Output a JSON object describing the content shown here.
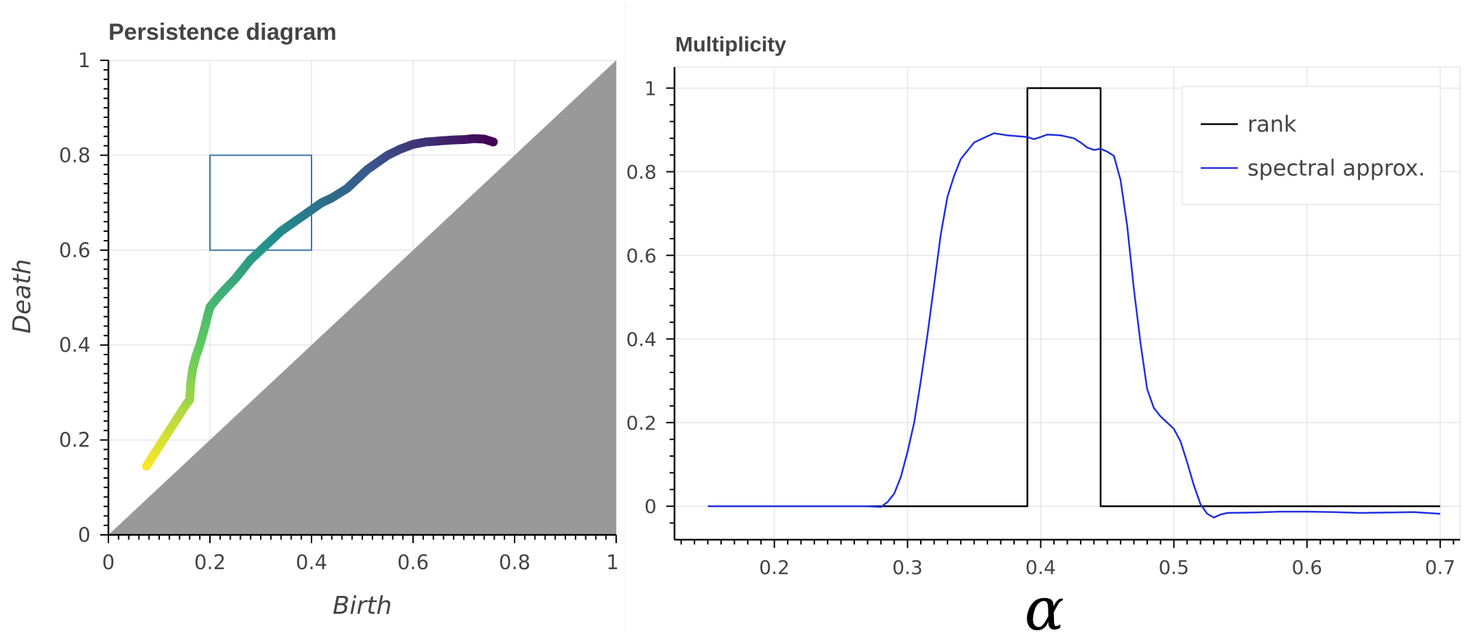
{
  "chart_data": [
    {
      "type": "scatter",
      "title": "Persistence diagram",
      "xlabel": "Birth",
      "ylabel": "Death",
      "xlim": [
        0,
        1
      ],
      "ylim": [
        0,
        1
      ],
      "xticks": [
        "0",
        "0.2",
        "0.4",
        "0.6",
        "0.8",
        "1"
      ],
      "yticks": [
        "0",
        "0.2",
        "0.4",
        "0.6",
        "0.8",
        "1"
      ],
      "grid": true,
      "diagonal_fill": {
        "region": "below y = x",
        "color": "#999999"
      },
      "rectangle": {
        "x0": 0.2,
        "x1": 0.4,
        "y0": 0.6,
        "y1": 0.8,
        "color": "#3b75a8"
      },
      "colormap": "viridis (reversed along the curve)",
      "points": [
        [
          0.075,
          0.145
        ],
        [
          0.09,
          0.17
        ],
        [
          0.105,
          0.195
        ],
        [
          0.12,
          0.22
        ],
        [
          0.135,
          0.245
        ],
        [
          0.15,
          0.27
        ],
        [
          0.16,
          0.285
        ],
        [
          0.162,
          0.32
        ],
        [
          0.166,
          0.35
        ],
        [
          0.172,
          0.375
        ],
        [
          0.18,
          0.4
        ],
        [
          0.188,
          0.43
        ],
        [
          0.195,
          0.46
        ],
        [
          0.2,
          0.48
        ],
        [
          0.215,
          0.5
        ],
        [
          0.232,
          0.52
        ],
        [
          0.25,
          0.54
        ],
        [
          0.265,
          0.56
        ],
        [
          0.28,
          0.58
        ],
        [
          0.3,
          0.6
        ],
        [
          0.32,
          0.62
        ],
        [
          0.34,
          0.64
        ],
        [
          0.36,
          0.655
        ],
        [
          0.38,
          0.67
        ],
        [
          0.4,
          0.685
        ],
        [
          0.42,
          0.7
        ],
        [
          0.44,
          0.71
        ],
        [
          0.47,
          0.73
        ],
        [
          0.49,
          0.75
        ],
        [
          0.51,
          0.77
        ],
        [
          0.53,
          0.785
        ],
        [
          0.55,
          0.8
        ],
        [
          0.575,
          0.813
        ],
        [
          0.6,
          0.823
        ],
        [
          0.625,
          0.828
        ],
        [
          0.65,
          0.83
        ],
        [
          0.675,
          0.832
        ],
        [
          0.7,
          0.833
        ],
        [
          0.72,
          0.835
        ],
        [
          0.74,
          0.834
        ],
        [
          0.758,
          0.828
        ]
      ]
    },
    {
      "type": "line",
      "title": "Multiplicity",
      "xlabel": "α",
      "ylabel": "",
      "xlim": [
        0.125,
        0.715
      ],
      "ylim": [
        -0.08,
        1.05
      ],
      "xticks": [
        "0.2",
        "0.3",
        "0.4",
        "0.5",
        "0.6",
        "0.7"
      ],
      "yticks": [
        "0",
        "0.2",
        "0.4",
        "0.6",
        "0.8",
        "1"
      ],
      "grid": true,
      "legend_position": "top-right",
      "series": [
        {
          "name": "rank",
          "color": "#000000",
          "points": [
            [
              0.15,
              0
            ],
            [
              0.39,
              0
            ],
            [
              0.39,
              1
            ],
            [
              0.445,
              1
            ],
            [
              0.445,
              0
            ],
            [
              0.7,
              0
            ]
          ]
        },
        {
          "name": "spectral approx.",
          "color": "#1f2fe0",
          "points": [
            [
              0.15,
              0
            ],
            [
              0.2,
              0
            ],
            [
              0.25,
              0
            ],
            [
              0.27,
              0.0
            ],
            [
              0.28,
              -0.002
            ],
            [
              0.285,
              0.01
            ],
            [
              0.29,
              0.03
            ],
            [
              0.295,
              0.07
            ],
            [
              0.3,
              0.13
            ],
            [
              0.305,
              0.2
            ],
            [
              0.31,
              0.3
            ],
            [
              0.315,
              0.41
            ],
            [
              0.32,
              0.53
            ],
            [
              0.325,
              0.65
            ],
            [
              0.33,
              0.74
            ],
            [
              0.335,
              0.79
            ],
            [
              0.34,
              0.83
            ],
            [
              0.345,
              0.85
            ],
            [
              0.35,
              0.87
            ],
            [
              0.36,
              0.885
            ],
            [
              0.365,
              0.892
            ],
            [
              0.375,
              0.887
            ],
            [
              0.39,
              0.883
            ],
            [
              0.395,
              0.878
            ],
            [
              0.4,
              0.883
            ],
            [
              0.405,
              0.889
            ],
            [
              0.415,
              0.887
            ],
            [
              0.425,
              0.88
            ],
            [
              0.43,
              0.87
            ],
            [
              0.435,
              0.858
            ],
            [
              0.44,
              0.852
            ],
            [
              0.445,
              0.855
            ],
            [
              0.45,
              0.848
            ],
            [
              0.455,
              0.838
            ],
            [
              0.46,
              0.78
            ],
            [
              0.465,
              0.67
            ],
            [
              0.47,
              0.52
            ],
            [
              0.475,
              0.39
            ],
            [
              0.48,
              0.28
            ],
            [
              0.485,
              0.235
            ],
            [
              0.49,
              0.215
            ],
            [
              0.495,
              0.2
            ],
            [
              0.5,
              0.185
            ],
            [
              0.505,
              0.155
            ],
            [
              0.51,
              0.105
            ],
            [
              0.515,
              0.05
            ],
            [
              0.52,
              0.005
            ],
            [
              0.525,
              -0.018
            ],
            [
              0.53,
              -0.027
            ],
            [
              0.535,
              -0.02
            ],
            [
              0.54,
              -0.016
            ],
            [
              0.56,
              -0.015
            ],
            [
              0.58,
              -0.013
            ],
            [
              0.6,
              -0.013
            ],
            [
              0.62,
              -0.014
            ],
            [
              0.64,
              -0.016
            ],
            [
              0.66,
              -0.015
            ],
            [
              0.68,
              -0.014
            ],
            [
              0.7,
              -0.018
            ]
          ]
        }
      ]
    }
  ]
}
